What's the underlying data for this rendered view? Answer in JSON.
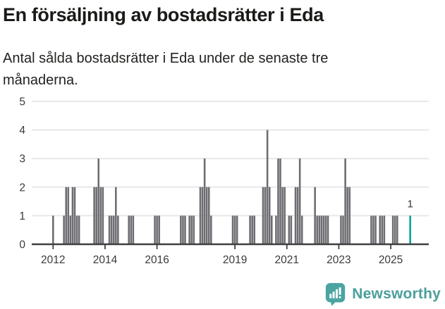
{
  "header": {
    "title": "En försäljning av bostadsrätter i Eda",
    "subtitle": "Antal sålda bostadsrätter i Eda under de senaste tre månaderna."
  },
  "chart_data": {
    "type": "bar",
    "title": "En försäljning av bostadsrätter i Eda",
    "xlabel": "",
    "ylabel": "",
    "ylim": [
      0,
      5
    ],
    "yticks": [
      0,
      1,
      2,
      3,
      4,
      5
    ],
    "xticks": [
      2012,
      2014,
      2016,
      2019,
      2021,
      2023,
      2025
    ],
    "grid": true,
    "legend": "none",
    "bar_color": "#6d6d72",
    "highlight_color": "#00a29b",
    "axis_color": "#3f3f3f",
    "gridline_color": "#e8e8e8",
    "tick_label_color": "#3a3a3a",
    "series": [
      [
        "2012-01",
        1
      ],
      [
        "2012-06",
        1
      ],
      [
        "2012-07",
        2
      ],
      [
        "2012-08",
        2
      ],
      [
        "2012-09",
        1
      ],
      [
        "2012-10",
        2
      ],
      [
        "2012-11",
        2
      ],
      [
        "2012-12",
        1
      ],
      [
        "2013-01",
        1
      ],
      [
        "2013-08",
        2
      ],
      [
        "2013-09",
        2
      ],
      [
        "2013-10",
        3
      ],
      [
        "2013-11",
        2
      ],
      [
        "2013-12",
        2
      ],
      [
        "2014-03",
        1
      ],
      [
        "2014-04",
        1
      ],
      [
        "2014-05",
        1
      ],
      [
        "2014-06",
        2
      ],
      [
        "2014-07",
        1
      ],
      [
        "2014-12",
        1
      ],
      [
        "2015-01",
        1
      ],
      [
        "2015-02",
        1
      ],
      [
        "2015-12",
        1
      ],
      [
        "2016-01",
        1
      ],
      [
        "2016-02",
        1
      ],
      [
        "2016-12",
        1
      ],
      [
        "2017-01",
        1
      ],
      [
        "2017-02",
        1
      ],
      [
        "2017-04",
        1
      ],
      [
        "2017-05",
        1
      ],
      [
        "2017-06",
        1
      ],
      [
        "2017-09",
        2
      ],
      [
        "2017-10",
        2
      ],
      [
        "2017-11",
        3
      ],
      [
        "2017-12",
        2
      ],
      [
        "2018-01",
        2
      ],
      [
        "2018-02",
        1
      ],
      [
        "2018-12",
        1
      ],
      [
        "2019-01",
        1
      ],
      [
        "2019-02",
        1
      ],
      [
        "2019-08",
        1
      ],
      [
        "2019-09",
        1
      ],
      [
        "2019-10",
        1
      ],
      [
        "2020-02",
        2
      ],
      [
        "2020-03",
        2
      ],
      [
        "2020-04",
        4
      ],
      [
        "2020-05",
        2
      ],
      [
        "2020-06",
        1
      ],
      [
        "2020-08",
        1
      ],
      [
        "2020-09",
        3
      ],
      [
        "2020-10",
        3
      ],
      [
        "2020-11",
        2
      ],
      [
        "2020-12",
        2
      ],
      [
        "2021-02",
        1
      ],
      [
        "2021-03",
        1
      ],
      [
        "2021-05",
        2
      ],
      [
        "2021-06",
        2
      ],
      [
        "2021-07",
        3
      ],
      [
        "2021-08",
        1
      ],
      [
        "2022-02",
        2
      ],
      [
        "2022-03",
        1
      ],
      [
        "2022-04",
        1
      ],
      [
        "2022-05",
        1
      ],
      [
        "2022-06",
        1
      ],
      [
        "2022-07",
        1
      ],
      [
        "2022-08",
        1
      ],
      [
        "2023-02",
        1
      ],
      [
        "2023-03",
        1
      ],
      [
        "2023-04",
        3
      ],
      [
        "2023-05",
        2
      ],
      [
        "2023-06",
        2
      ],
      [
        "2024-04",
        1
      ],
      [
        "2024-05",
        1
      ],
      [
        "2024-06",
        1
      ],
      [
        "2024-08",
        1
      ],
      [
        "2024-09",
        1
      ],
      [
        "2024-10",
        1
      ],
      [
        "2025-02",
        1
      ],
      [
        "2025-03",
        1
      ],
      [
        "2025-04",
        1
      ],
      [
        "2025-10",
        1
      ]
    ],
    "highlight": {
      "month": "2025-10",
      "value": 1,
      "label": "1"
    }
  },
  "footer": {
    "brand": "Newsworthy"
  }
}
